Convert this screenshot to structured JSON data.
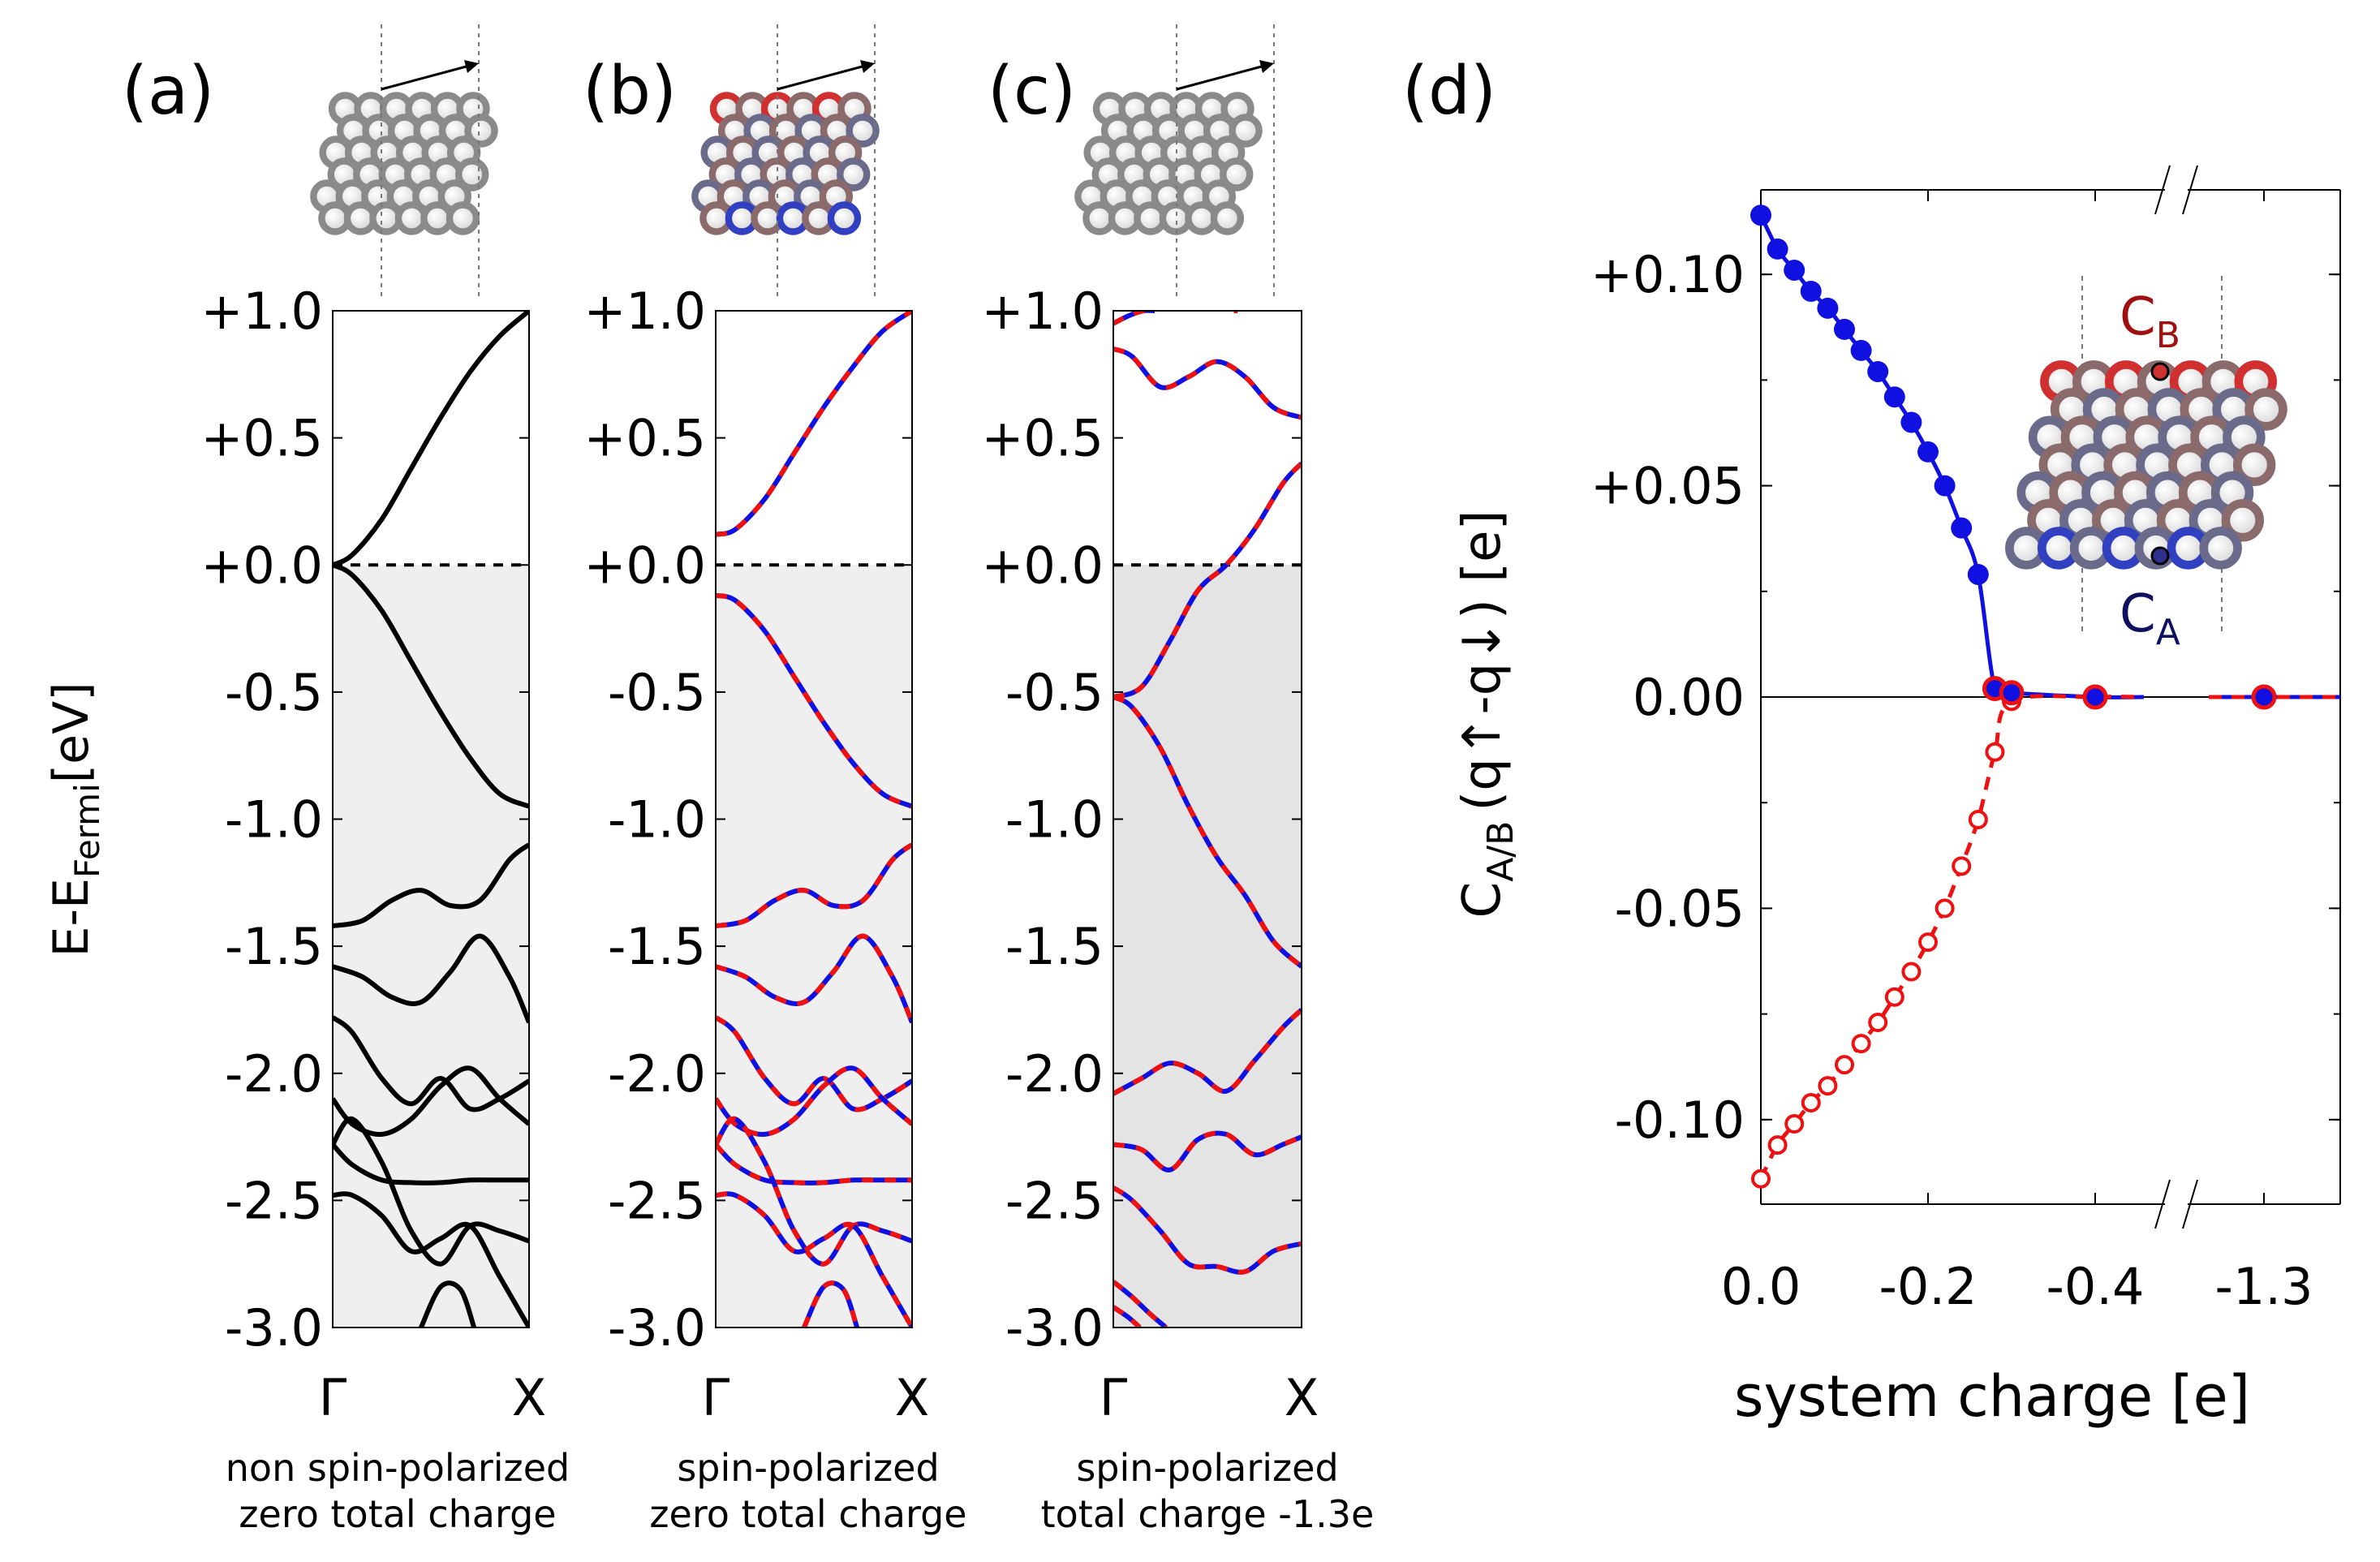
{
  "chart_data": [
    {
      "id": "a",
      "type": "line",
      "panel_label": "(a)",
      "ylabel": "E-E",
      "ylabel_sub": "Fermi",
      "ylabel_unit": "[eV]",
      "ylim": [
        -3.0,
        1.0
      ],
      "y_ticks": [
        "+1.0",
        "+0.5",
        "+0.0",
        "-0.5",
        "-1.0",
        "-1.5",
        "-2.0",
        "-2.5",
        "-3.0"
      ],
      "y_tick_values": [
        1.0,
        0.5,
        0.0,
        -0.5,
        -1.0,
        -1.5,
        -2.0,
        -2.5,
        -3.0
      ],
      "x_ticks": [
        "Γ",
        "X"
      ],
      "caption_line1": "non spin-polarized",
      "caption_line2": "zero total charge",
      "fermi_level": 0.0,
      "occupied_shading": "#efefef",
      "spin_polarized": false,
      "bands": [
        {
          "k": [
            0,
            0.1,
            0.25,
            0.4,
            0.55,
            0.7,
            0.85,
            1.0
          ],
          "E": [
            0.0,
            0.04,
            0.18,
            0.38,
            0.58,
            0.76,
            0.9,
            1.0
          ]
        },
        {
          "k": [
            0,
            0.1,
            0.25,
            0.4,
            0.55,
            0.7,
            0.85,
            1.0
          ],
          "E": [
            0.0,
            -0.04,
            -0.18,
            -0.38,
            -0.58,
            -0.76,
            -0.9,
            -0.95
          ]
        },
        {
          "k": [
            0,
            0.15,
            0.3,
            0.45,
            0.6,
            0.75,
            0.9,
            1.0
          ],
          "E": [
            -1.42,
            -1.4,
            -1.32,
            -1.28,
            -1.34,
            -1.32,
            -1.16,
            -1.1
          ]
        },
        {
          "k": [
            0,
            0.15,
            0.3,
            0.45,
            0.6,
            0.75,
            0.9,
            1.0
          ],
          "E": [
            -1.58,
            -1.62,
            -1.7,
            -1.72,
            -1.6,
            -1.46,
            -1.62,
            -1.8
          ]
        },
        {
          "k": [
            0,
            0.1,
            0.25,
            0.4,
            0.55,
            0.7,
            0.85,
            1.0
          ],
          "E": [
            -1.78,
            -1.84,
            -2.02,
            -2.12,
            -2.02,
            -2.14,
            -2.1,
            -2.03
          ]
        },
        {
          "k": [
            0,
            0.1,
            0.25,
            0.4,
            0.55,
            0.7,
            0.85,
            1.0
          ],
          "E": [
            -2.1,
            -2.2,
            -2.24,
            -2.18,
            -2.05,
            -1.98,
            -2.1,
            -2.2
          ]
        },
        {
          "k": [
            0,
            0.1,
            0.25,
            0.4,
            0.55,
            0.7,
            0.85,
            1.0
          ],
          "E": [
            -2.28,
            -2.36,
            -2.42,
            -2.43,
            -2.43,
            -2.42,
            -2.42,
            -2.42
          ]
        },
        {
          "k": [
            0,
            0.1,
            0.25,
            0.4,
            0.55,
            0.7,
            0.85,
            1.0
          ],
          "E": [
            -2.28,
            -2.18,
            -2.35,
            -2.62,
            -2.75,
            -2.6,
            -2.62,
            -2.66
          ]
        },
        {
          "k": [
            0,
            0.1,
            0.25,
            0.4,
            0.55,
            0.7,
            0.85,
            1.0
          ],
          "E": [
            -2.48,
            -2.48,
            -2.56,
            -2.7,
            -2.65,
            -2.6,
            -2.8,
            -3.0
          ]
        },
        {
          "k": [
            0.45,
            0.55,
            0.65,
            0.72
          ],
          "E": [
            -3.0,
            -2.84,
            -2.85,
            -3.0
          ]
        }
      ]
    },
    {
      "id": "b",
      "type": "line",
      "panel_label": "(b)",
      "ylim": [
        -3.0,
        1.0
      ],
      "y_ticks": [
        "+1.0",
        "+0.5",
        "+0.0",
        "-0.5",
        "-1.0",
        "-1.5",
        "-2.0",
        "-2.5",
        "-3.0"
      ],
      "y_tick_values": [
        1.0,
        0.5,
        0.0,
        -0.5,
        -1.0,
        -1.5,
        -2.0,
        -2.5,
        -3.0
      ],
      "x_ticks": [
        "Γ",
        "X"
      ],
      "caption_line1": "spin-polarized",
      "caption_line2": "zero total charge",
      "fermi_level": 0.0,
      "occupied_shading": "#efefef",
      "spin_polarized": true,
      "bands": [
        {
          "k": [
            0,
            0.1,
            0.25,
            0.4,
            0.55,
            0.7,
            0.85,
            1.0
          ],
          "E": [
            0.12,
            0.14,
            0.26,
            0.44,
            0.62,
            0.78,
            0.92,
            1.0
          ]
        },
        {
          "k": [
            0,
            0.1,
            0.25,
            0.4,
            0.55,
            0.7,
            0.85,
            1.0
          ],
          "E": [
            -0.12,
            -0.14,
            -0.26,
            -0.44,
            -0.62,
            -0.78,
            -0.9,
            -0.95
          ]
        },
        {
          "k": [
            0,
            0.15,
            0.3,
            0.45,
            0.6,
            0.75,
            0.9,
            1.0
          ],
          "E": [
            -1.42,
            -1.4,
            -1.32,
            -1.28,
            -1.34,
            -1.32,
            -1.16,
            -1.1
          ]
        },
        {
          "k": [
            0,
            0.15,
            0.3,
            0.45,
            0.6,
            0.75,
            0.9,
            1.0
          ],
          "E": [
            -1.58,
            -1.62,
            -1.7,
            -1.72,
            -1.6,
            -1.46,
            -1.62,
            -1.8
          ]
        },
        {
          "k": [
            0,
            0.1,
            0.25,
            0.4,
            0.55,
            0.7,
            0.85,
            1.0
          ],
          "E": [
            -1.78,
            -1.84,
            -2.02,
            -2.12,
            -2.02,
            -2.14,
            -2.1,
            -2.03
          ]
        },
        {
          "k": [
            0,
            0.1,
            0.25,
            0.4,
            0.55,
            0.7,
            0.85,
            1.0
          ],
          "E": [
            -2.1,
            -2.2,
            -2.24,
            -2.18,
            -2.05,
            -1.98,
            -2.1,
            -2.2
          ]
        },
        {
          "k": [
            0,
            0.1,
            0.25,
            0.4,
            0.55,
            0.7,
            0.85,
            1.0
          ],
          "E": [
            -2.28,
            -2.36,
            -2.42,
            -2.43,
            -2.43,
            -2.42,
            -2.42,
            -2.42
          ]
        },
        {
          "k": [
            0,
            0.1,
            0.25,
            0.4,
            0.55,
            0.7,
            0.85,
            1.0
          ],
          "E": [
            -2.28,
            -2.18,
            -2.35,
            -2.62,
            -2.75,
            -2.6,
            -2.62,
            -2.66
          ]
        },
        {
          "k": [
            0,
            0.1,
            0.25,
            0.4,
            0.55,
            0.7,
            0.85,
            1.0
          ],
          "E": [
            -2.48,
            -2.48,
            -2.56,
            -2.7,
            -2.65,
            -2.6,
            -2.8,
            -3.0
          ]
        },
        {
          "k": [
            0.45,
            0.55,
            0.65,
            0.72
          ],
          "E": [
            -3.0,
            -2.84,
            -2.85,
            -3.0
          ]
        }
      ]
    },
    {
      "id": "c",
      "type": "line",
      "panel_label": "(c)",
      "ylim": [
        -3.0,
        1.0
      ],
      "y_ticks": [
        "+1.0",
        "+0.5",
        "+0.0",
        "-0.5",
        "-1.0",
        "-1.5",
        "-2.0",
        "-2.5",
        "-3.0"
      ],
      "y_tick_values": [
        1.0,
        0.5,
        0.0,
        -0.5,
        -1.0,
        -1.5,
        -2.0,
        -2.5,
        -3.0
      ],
      "x_ticks": [
        "Γ",
        "X"
      ],
      "caption_line1": "spin-polarized",
      "caption_line2": "total charge -1.3e",
      "fermi_level": 0.0,
      "occupied_shading": "#e4e4e4",
      "spin_polarized": true,
      "bands": [
        {
          "k": [
            0,
            0.08,
            0.16,
            0.22
          ],
          "E": [
            0.95,
            0.98,
            1.0,
            1.0
          ]
        },
        {
          "k": [
            0.64,
            0.66
          ],
          "E": [
            1.0,
            1.0
          ]
        },
        {
          "k": [
            0,
            0.1,
            0.25,
            0.4,
            0.55,
            0.7,
            0.85,
            1.0
          ],
          "E": [
            0.85,
            0.82,
            0.7,
            0.74,
            0.8,
            0.74,
            0.62,
            0.58
          ]
        },
        {
          "k": [
            0,
            0.15,
            0.3,
            0.45,
            0.6,
            0.75,
            0.9,
            1.0
          ],
          "E": [
            -0.52,
            -0.48,
            -0.3,
            -0.1,
            0.0,
            0.14,
            0.32,
            0.4
          ]
        },
        {
          "k": [
            0,
            0.1,
            0.25,
            0.4,
            0.55,
            0.7,
            0.85,
            1.0
          ],
          "E": [
            -0.52,
            -0.56,
            -0.72,
            -0.95,
            -1.15,
            -1.3,
            -1.48,
            -1.58
          ]
        },
        {
          "k": [
            0,
            0.15,
            0.3,
            0.45,
            0.6,
            0.75,
            0.9,
            1.0
          ],
          "E": [
            -2.08,
            -2.02,
            -1.96,
            -2.0,
            -2.07,
            -1.95,
            -1.82,
            -1.75
          ]
        },
        {
          "k": [
            0,
            0.15,
            0.3,
            0.45,
            0.6,
            0.75,
            0.9,
            1.0
          ],
          "E": [
            -2.28,
            -2.3,
            -2.38,
            -2.26,
            -2.24,
            -2.32,
            -2.28,
            -2.25
          ]
        },
        {
          "k": [
            0,
            0.1,
            0.25,
            0.4,
            0.55,
            0.7,
            0.85,
            1.0
          ],
          "E": [
            -2.45,
            -2.5,
            -2.62,
            -2.75,
            -2.76,
            -2.78,
            -2.7,
            -2.67
          ]
        },
        {
          "k": [
            0,
            0.1,
            0.2,
            0.28
          ],
          "E": [
            -2.82,
            -2.88,
            -2.95,
            -3.0
          ]
        },
        {
          "k": [
            0,
            0.08,
            0.14
          ],
          "E": [
            -2.92,
            -2.96,
            -3.0
          ]
        }
      ]
    },
    {
      "id": "d",
      "type": "scatter",
      "panel_label": "(d)",
      "xlabel": "system charge [e]",
      "ylabel": "C",
      "ylabel_sub": "A/B",
      "ylabel_unit": "(q↑-q↓) [e]",
      "ylim": [
        -0.12,
        0.12
      ],
      "y_ticks": [
        "+0.10",
        "+0.05",
        "0.00",
        "-0.05",
        "-0.10"
      ],
      "y_tick_values": [
        0.1,
        0.05,
        0.0,
        -0.05,
        -0.1
      ],
      "x_ticks": [
        "0.0",
        "-0.2",
        "-0.4",
        "-1.3"
      ],
      "x_tick_values": [
        0.0,
        -0.2,
        -0.4,
        -1.3
      ],
      "axis_break": "between -0.4 and -1.3",
      "annotation_B": "C",
      "annotation_B_sub": "B",
      "annotation_A": "C",
      "annotation_A_sub": "A",
      "series": [
        {
          "name": "C_A",
          "color": "#1010e0",
          "marker": "filled circle",
          "line": "solid",
          "x": [
            0.0,
            -0.02,
            -0.04,
            -0.06,
            -0.08,
            -0.1,
            -0.12,
            -0.14,
            -0.16,
            -0.18,
            -0.2,
            -0.22,
            -0.24,
            -0.26,
            -0.28,
            -0.3,
            -0.4,
            -1.3
          ],
          "y": [
            0.114,
            0.106,
            0.101,
            0.096,
            0.092,
            0.087,
            0.082,
            0.077,
            0.071,
            0.065,
            0.058,
            0.05,
            0.04,
            0.029,
            0.002,
            0.001,
            0.0,
            0.0
          ]
        },
        {
          "name": "C_B",
          "color": "#ee1111",
          "marker": "open circle",
          "line": "dashed",
          "x": [
            0.0,
            -0.02,
            -0.04,
            -0.06,
            -0.08,
            -0.1,
            -0.12,
            -0.14,
            -0.16,
            -0.18,
            -0.2,
            -0.22,
            -0.24,
            -0.26,
            -0.28,
            -0.3,
            -0.4,
            -1.3
          ],
          "y": [
            -0.114,
            -0.106,
            -0.101,
            -0.096,
            -0.092,
            -0.087,
            -0.082,
            -0.077,
            -0.071,
            -0.065,
            -0.058,
            -0.05,
            -0.04,
            -0.029,
            -0.013,
            -0.001,
            0.0,
            0.0
          ]
        }
      ]
    }
  ],
  "colors": {
    "spin_up": "#ee1111",
    "spin_down": "#1010e0",
    "band": "#000000",
    "atom_grey": "#8a8a8a"
  }
}
